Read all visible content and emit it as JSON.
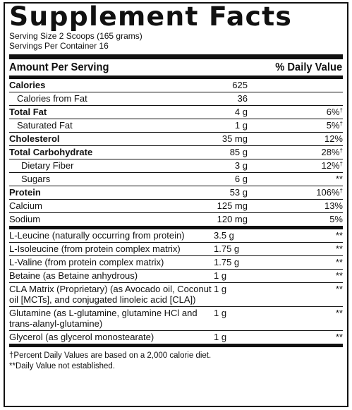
{
  "title": "Supplement Facts",
  "serving_size": "Serving Size 2 Scoops (165 grams)",
  "servings_per_container": "Servings Per Container 16",
  "header": {
    "amount": "Amount Per Serving",
    "dv": "% Daily Value"
  },
  "nutrients": [
    {
      "name": "Calories",
      "amount": "625",
      "dv": "",
      "bold": true,
      "indent": 0
    },
    {
      "name": "Calories from Fat",
      "amount": "36",
      "dv": "",
      "bold": false,
      "indent": 1
    },
    {
      "name": "Total Fat",
      "amount": "4 g",
      "dv": "6%",
      "mark": "†",
      "bold": true,
      "indent": 0
    },
    {
      "name": "Saturated Fat",
      "amount": "1 g",
      "dv": "5%",
      "mark": "†",
      "bold": false,
      "indent": 1
    },
    {
      "name": "Cholesterol",
      "amount": "35 mg",
      "dv": "12%",
      "bold": true,
      "indent": 0
    },
    {
      "name": "Total Carbohydrate",
      "amount": "85 g",
      "dv": "28%",
      "mark": "†",
      "bold": true,
      "indent": 0
    },
    {
      "name": "Dietary Fiber",
      "amount": "3 g",
      "dv": "12%",
      "mark": "†",
      "bold": false,
      "indent": 2
    },
    {
      "name": "Sugars",
      "amount": "6 g",
      "dv": "**",
      "bold": false,
      "indent": 2
    },
    {
      "name": "Protein",
      "amount": "53 g",
      "dv": "106%",
      "mark": "†",
      "bold": true,
      "indent": 0
    },
    {
      "name": "Calcium",
      "amount": "125 mg",
      "dv": "13%",
      "bold": false,
      "indent": 0
    },
    {
      "name": "Sodium",
      "amount": "120 mg",
      "dv": "5%",
      "bold": false,
      "indent": 0
    }
  ],
  "ingredients": [
    {
      "name": "L-Leucine (naturally occurring from protein)",
      "amount": "3.5 g",
      "dv": "**"
    },
    {
      "name": "L-Isoleucine (from protein complex matrix)",
      "amount": "1.75 g",
      "dv": "**"
    },
    {
      "name": "L-Valine (from protein complex matrix)",
      "amount": "1.75 g",
      "dv": "**"
    },
    {
      "name": "Betaine (as Betaine anhydrous)",
      "amount": "1 g",
      "dv": "**"
    },
    {
      "name": "CLA Matrix (Proprietary) (as Avocado oil, Coconut oil [MCTs], and conjugated linoleic acid [CLA])",
      "amount": "1 g",
      "dv": "**"
    },
    {
      "name": "Glutamine (as L-glutamine, glutamine HCl and trans-alanyl-glutamine)",
      "amount": "1 g",
      "dv": "**"
    },
    {
      "name": "Glycerol (as glycerol monostearate)",
      "amount": "1 g",
      "dv": "**"
    }
  ],
  "footnotes": {
    "dagger": "†Percent Daily Values are based on a 2,000 calorie diet.",
    "star": "**Daily Value not established."
  }
}
